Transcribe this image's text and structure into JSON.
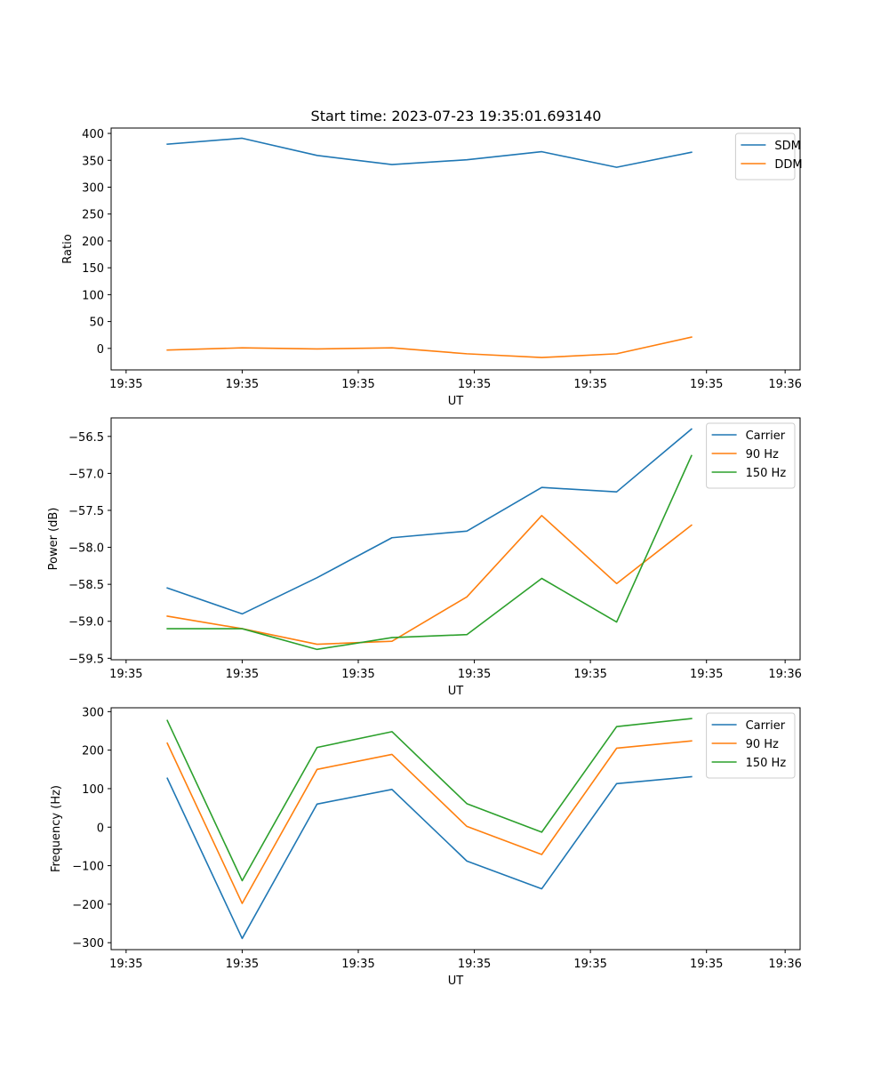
{
  "title": "Start time: 2023-07-23 19:35:01.693140",
  "colors": {
    "blue": "#1f77b4",
    "orange": "#ff7f0e",
    "green": "#2ca02c"
  },
  "chart_data": [
    {
      "type": "line",
      "title": "Start time: 2023-07-23 19:35:01.693140",
      "xlabel": "UT",
      "ylabel": "Ratio",
      "xlim": [
        0,
        9.2
      ],
      "x": [
        0.75,
        1.75,
        2.75,
        3.75,
        4.75,
        5.75,
        6.75,
        7.75
      ],
      "xticks": [
        0.2,
        1.75,
        3.3,
        4.85,
        6.4,
        7.95,
        9.0
      ],
      "xtick_labels": [
        "19:35",
        "19:35",
        "19:35",
        "19:35",
        "19:35",
        "19:35",
        "19:36"
      ],
      "ylim": [
        -40,
        410
      ],
      "yticks": [
        0,
        50,
        100,
        150,
        200,
        250,
        300,
        350,
        400
      ],
      "ytick_labels": [
        "0",
        "50",
        "100",
        "150",
        "200",
        "250",
        "300",
        "350",
        "400"
      ],
      "legend_position": "top-right",
      "series": [
        {
          "name": "SDM",
          "color": "#1f77b4",
          "values": [
            380,
            391,
            359,
            342,
            351,
            366,
            337,
            365
          ]
        },
        {
          "name": "DDM",
          "color": "#ff7f0e",
          "values": [
            -3,
            1,
            -1,
            1,
            -10,
            -17,
            -10,
            21
          ]
        }
      ]
    },
    {
      "type": "line",
      "xlabel": "UT",
      "ylabel": "Power (dB)",
      "xlim": [
        0,
        9.2
      ],
      "x": [
        0.75,
        1.75,
        2.75,
        3.75,
        4.75,
        5.75,
        6.75,
        7.75
      ],
      "xticks": [
        0.2,
        1.75,
        3.3,
        4.85,
        6.4,
        7.95,
        9.0
      ],
      "xtick_labels": [
        "19:35",
        "19:35",
        "19:35",
        "19:35",
        "19:35",
        "19:35",
        "19:36"
      ],
      "ylim": [
        -59.52,
        -56.25
      ],
      "yticks": [
        -59.5,
        -59.0,
        -58.5,
        -58.0,
        -57.5,
        -57.0,
        -56.5
      ],
      "ytick_labels": [
        "−59.5",
        "−59.0",
        "−58.5",
        "−58.0",
        "−57.5",
        "−57.0",
        "−56.5"
      ],
      "legend_position": "top-right",
      "series": [
        {
          "name": "Carrier",
          "color": "#1f77b4",
          "values": [
            -58.55,
            -58.9,
            -58.41,
            -57.87,
            -57.78,
            -57.19,
            -57.25,
            -56.4
          ]
        },
        {
          "name": "90 Hz",
          "color": "#ff7f0e",
          "values": [
            -58.93,
            -59.1,
            -59.31,
            -59.27,
            -58.67,
            -57.57,
            -58.49,
            -57.7
          ]
        },
        {
          "name": "150 Hz",
          "color": "#2ca02c",
          "values": [
            -59.1,
            -59.1,
            -59.38,
            -59.22,
            -59.18,
            -58.42,
            -59.01,
            -56.76
          ]
        }
      ]
    },
    {
      "type": "line",
      "xlabel": "UT",
      "ylabel": "Frequency (Hz)",
      "xlim": [
        0,
        9.2
      ],
      "x": [
        0.75,
        1.75,
        2.75,
        3.75,
        4.75,
        5.75,
        6.75,
        7.75
      ],
      "xticks": [
        0.2,
        1.75,
        3.3,
        4.85,
        6.4,
        7.95,
        9.0
      ],
      "xtick_labels": [
        "19:35",
        "19:35",
        "19:35",
        "19:35",
        "19:35",
        "19:35",
        "19:36"
      ],
      "ylim": [
        -318,
        310
      ],
      "yticks": [
        -300,
        -200,
        -100,
        0,
        100,
        200,
        300
      ],
      "ytick_labels": [
        "−300",
        "−200",
        "−100",
        "0",
        "100",
        "200",
        "300"
      ],
      "legend_position": "top-right",
      "series": [
        {
          "name": "Carrier",
          "color": "#1f77b4",
          "values": [
            127,
            -289,
            60,
            98,
            -88,
            -160,
            113,
            131
          ]
        },
        {
          "name": "90 Hz",
          "color": "#ff7f0e",
          "values": [
            218,
            -198,
            150,
            189,
            2,
            -71,
            205,
            224
          ]
        },
        {
          "name": "150 Hz",
          "color": "#2ca02c",
          "values": [
            277,
            -139,
            207,
            248,
            61,
            -13,
            261,
            282
          ]
        }
      ]
    }
  ]
}
